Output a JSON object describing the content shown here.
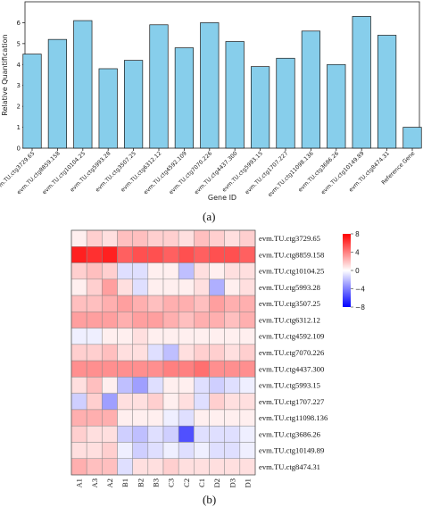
{
  "chart_data": [
    {
      "type": "bar",
      "panel_label": "(a)",
      "title": "",
      "xlabel": "Gene ID",
      "ylabel": "Relative Quantification",
      "ylim": [
        0,
        7
      ],
      "yticks": [
        0,
        1,
        2,
        3,
        4,
        5,
        6
      ],
      "bar_color": "#87ceeb",
      "grid": false,
      "categories": [
        "evm.TU.ctg3729.65",
        "evm.TU.ctg8859.158",
        "evm.TU.ctg10104.25",
        "evm.TU.ctg5993.28",
        "evm.TU.ctg3507.25",
        "evm.TU.ctg6312.12",
        "evm.TU.ctg4592.109",
        "evm.TU.ctg7070.226",
        "evm.TU.ctg4437.300",
        "evm.TU.ctg5993.15",
        "evm.TU.ctg1707.227",
        "evm.TU.ctg11098.136",
        "evm.TU.ctg3686.26",
        "evm.TU.ctg10149.89",
        "evm.TU.ctg8474.31",
        "Reference Gene"
      ],
      "values": [
        4.5,
        5.2,
        6.1,
        3.8,
        4.2,
        5.9,
        4.8,
        6.0,
        5.1,
        3.9,
        4.3,
        5.6,
        4.0,
        6.3,
        5.4,
        1.0
      ]
    },
    {
      "type": "heatmap",
      "panel_label": "(b)",
      "title": "",
      "columns": [
        "A1",
        "A3",
        "A2",
        "B1",
        "B2",
        "B3",
        "C3",
        "C2",
        "C1",
        "D2",
        "D3",
        "D1"
      ],
      "rows": [
        "evm.TU.ctg3729.65",
        "evm.TU.ctg8859.158",
        "evm.TU.ctg10104.25",
        "evm.TU.ctg5993.28",
        "evm.TU.ctg3507.25",
        "evm.TU.ctg6312.12",
        "evm.TU.ctg4592.109",
        "evm.TU.ctg7070.226",
        "evm.TU.ctg4437.300",
        "evm.TU.ctg5993.15",
        "evm.TU.ctg1707.227",
        "evm.TU.ctg11098.136",
        "evm.TU.ctg3686.26",
        "evm.TU.ctg10149.89",
        "evm.TU.ctg8474.31"
      ],
      "colorbar": {
        "min": -8,
        "max": 8,
        "ticks": [
          8,
          4,
          0,
          -4,
          -8
        ],
        "tick_labels": [
          "8",
          "4",
          "0",
          "−4",
          "−8"
        ]
      },
      "colors": {
        "low": "#0000ff",
        "mid": "#ffffff",
        "high": "#ff0000"
      },
      "values": [
        [
          0.5,
          1.5,
          1.0,
          2.0,
          2.0,
          1.5,
          1.5,
          1.0,
          2.0,
          1.5,
          1.0,
          1.5
        ],
        [
          7.0,
          6.5,
          7.0,
          5.0,
          5.5,
          5.5,
          5.0,
          5.5,
          5.0,
          5.5,
          5.5,
          5.0
        ],
        [
          1.5,
          2.0,
          1.5,
          -1.0,
          -1.0,
          0.5,
          0.5,
          -2.0,
          1.0,
          0.5,
          1.0,
          1.0
        ],
        [
          0.5,
          1.5,
          3.0,
          1.0,
          -1.0,
          0.5,
          0.5,
          0.5,
          1.0,
          -2.5,
          0.5,
          1.0
        ],
        [
          2.0,
          2.0,
          2.5,
          3.0,
          2.5,
          2.0,
          2.5,
          2.5,
          2.0,
          3.0,
          2.5,
          2.5
        ],
        [
          3.0,
          3.0,
          3.0,
          2.5,
          3.0,
          3.0,
          2.5,
          2.0,
          2.5,
          2.5,
          2.0,
          2.5
        ],
        [
          -0.5,
          -0.5,
          0.5,
          0.5,
          1.0,
          0.5,
          0.5,
          0.5,
          0.5,
          0.5,
          0.5,
          0.5
        ],
        [
          1.5,
          1.5,
          2.0,
          1.0,
          1.0,
          -1.0,
          -2.0,
          1.0,
          1.5,
          1.5,
          1.0,
          1.5
        ],
        [
          3.5,
          3.5,
          3.5,
          3.5,
          3.5,
          3.5,
          4.0,
          4.0,
          4.5,
          3.5,
          3.5,
          3.5
        ],
        [
          1.0,
          2.0,
          0.5,
          -2.0,
          -3.0,
          -1.0,
          0.5,
          0.5,
          -1.0,
          -1.5,
          -1.0,
          -0.5
        ],
        [
          -1.5,
          1.5,
          -3.0,
          1.0,
          1.0,
          1.5,
          0.5,
          1.0,
          -1.0,
          1.5,
          1.0,
          1.0
        ],
        [
          2.5,
          2.5,
          2.5,
          0.5,
          0.5,
          0.5,
          -0.5,
          -1.0,
          0.5,
          0.5,
          0.5,
          0.5
        ],
        [
          1.5,
          1.0,
          1.0,
          -1.5,
          -2.0,
          -1.0,
          -1.5,
          -5.5,
          -1.0,
          -1.0,
          -1.0,
          -0.5
        ],
        [
          1.0,
          1.0,
          1.5,
          -0.5,
          -1.5,
          -1.0,
          -0.5,
          -1.0,
          -0.5,
          -1.0,
          -1.0,
          -0.5
        ],
        [
          2.5,
          2.0,
          2.0,
          -1.0,
          1.0,
          1.0,
          1.5,
          1.0,
          1.0,
          1.0,
          1.0,
          1.0
        ]
      ]
    }
  ]
}
